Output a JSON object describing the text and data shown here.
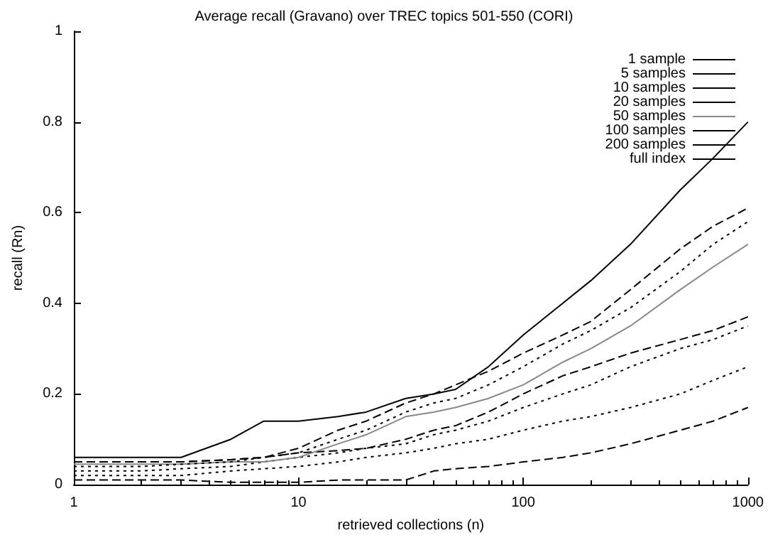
{
  "chart_data": {
    "type": "line",
    "title": "Average recall (Gravano) over TREC topics 501-550 (CORI)",
    "xlabel": "retrieved collections (n)",
    "ylabel": "recall (Rn)",
    "log": "x",
    "xlim": [
      1,
      1000
    ],
    "xticks": [
      1,
      10,
      100,
      1000
    ],
    "ylim": [
      0,
      1
    ],
    "yticks": [
      0,
      0.2,
      0.4,
      0.6,
      0.8,
      1
    ],
    "grid": false,
    "legend": "top right",
    "marker": "none",
    "x": [
      1,
      2,
      3,
      5,
      7,
      10,
      15,
      20,
      30,
      40,
      50,
      70,
      100,
      150,
      200,
      300,
      500,
      700,
      1000
    ],
    "series": [
      {
        "name": "1 sample",
        "color": "#000000",
        "line_style": "dashed",
        "values": [
          0.01,
          0.01,
          0.01,
          0.005,
          0.005,
          0.005,
          0.01,
          0.01,
          0.01,
          0.03,
          0.035,
          0.04,
          0.05,
          0.06,
          0.07,
          0.09,
          0.12,
          0.14,
          0.17
        ]
      },
      {
        "name": "5 samples",
        "color": "#000000",
        "line_style": "dotted",
        "values": [
          0.02,
          0.02,
          0.02,
          0.03,
          0.035,
          0.04,
          0.05,
          0.06,
          0.07,
          0.08,
          0.09,
          0.1,
          0.12,
          0.14,
          0.15,
          0.17,
          0.2,
          0.23,
          0.26
        ]
      },
      {
        "name": "10 samples",
        "color": "#000000",
        "line_style": "dotted",
        "values": [
          0.03,
          0.03,
          0.035,
          0.04,
          0.05,
          0.06,
          0.07,
          0.08,
          0.09,
          0.11,
          0.12,
          0.14,
          0.17,
          0.2,
          0.22,
          0.26,
          0.3,
          0.32,
          0.35
        ]
      },
      {
        "name": "20 samples",
        "color": "#000000",
        "line_style": "dashed",
        "values": [
          0.05,
          0.05,
          0.05,
          0.055,
          0.06,
          0.07,
          0.075,
          0.08,
          0.1,
          0.12,
          0.13,
          0.16,
          0.2,
          0.24,
          0.26,
          0.29,
          0.32,
          0.34,
          0.37
        ]
      },
      {
        "name": "50 samples",
        "color": "#888888",
        "line_style": "solid",
        "values": [
          0.045,
          0.045,
          0.045,
          0.05,
          0.05,
          0.06,
          0.09,
          0.11,
          0.15,
          0.16,
          0.17,
          0.19,
          0.22,
          0.27,
          0.3,
          0.35,
          0.43,
          0.48,
          0.53
        ]
      },
      {
        "name": "100 samples",
        "color": "#000000",
        "line_style": "dotted",
        "values": [
          0.04,
          0.04,
          0.045,
          0.05,
          0.06,
          0.07,
          0.1,
          0.12,
          0.16,
          0.18,
          0.19,
          0.22,
          0.26,
          0.31,
          0.34,
          0.39,
          0.47,
          0.53,
          0.58
        ]
      },
      {
        "name": "200 samples",
        "color": "#000000",
        "line_style": "dashed",
        "values": [
          0.05,
          0.05,
          0.05,
          0.055,
          0.06,
          0.08,
          0.12,
          0.14,
          0.18,
          0.2,
          0.22,
          0.25,
          0.29,
          0.33,
          0.36,
          0.43,
          0.52,
          0.57,
          0.61
        ]
      },
      {
        "name": "full index",
        "color": "#000000",
        "line_style": "solid",
        "values": [
          0.06,
          0.06,
          0.06,
          0.1,
          0.14,
          0.14,
          0.15,
          0.16,
          0.19,
          0.2,
          0.21,
          0.26,
          0.33,
          0.4,
          0.45,
          0.53,
          0.65,
          0.72,
          0.8
        ]
      }
    ]
  }
}
